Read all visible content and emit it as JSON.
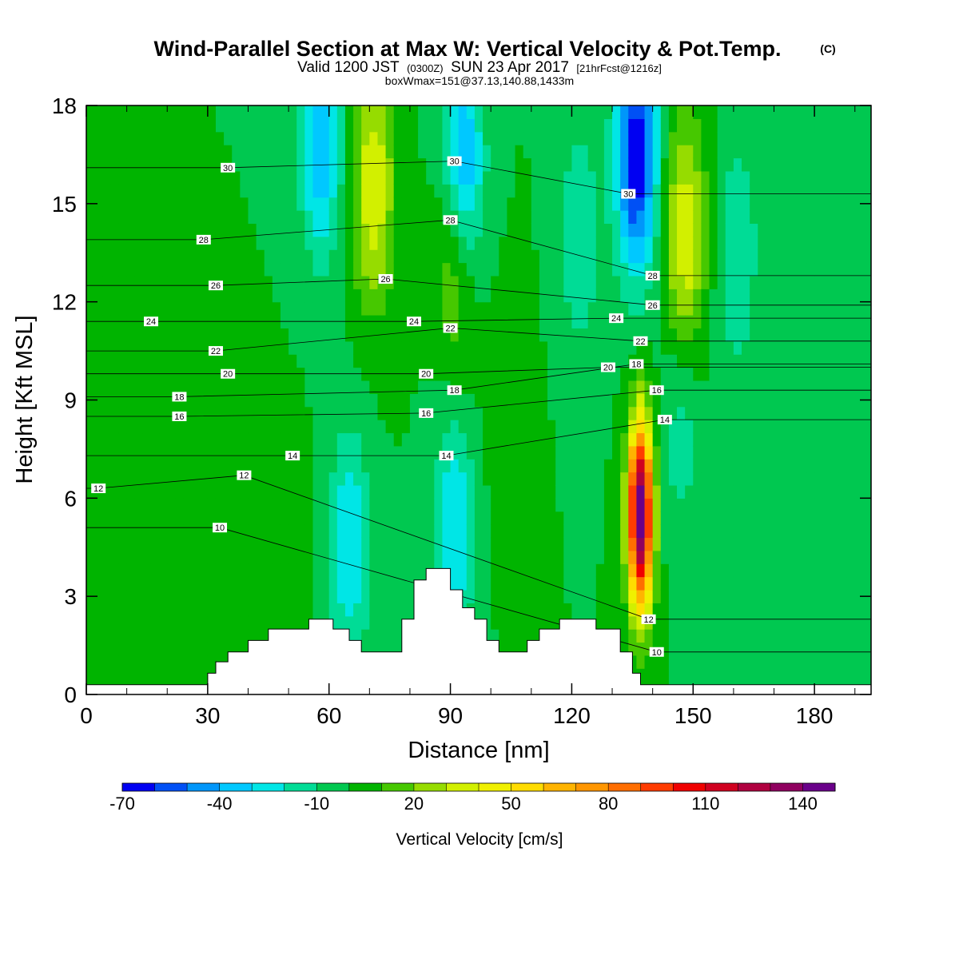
{
  "title": {
    "main": "Wind-Parallel Section at Max W: Vertical Velocity & Pot.Temp.",
    "copyright": "(C)",
    "valid_prefix": "Valid 1200 JST",
    "valid_utc": "(0300Z)",
    "valid_date": "SUN 23 Apr 2017",
    "forecast": "[21hrFcst@1216z]",
    "box": "boxWmax=151@37.13,140.88,1433m"
  },
  "chart_data": {
    "type": "heatmap",
    "xlabel": "Distance [nm]",
    "ylabel": "Height [Kft MSL]",
    "xlim": [
      0,
      194
    ],
    "ylim": [
      0,
      18
    ],
    "xticks": [
      "0",
      "30",
      "60",
      "90",
      "120",
      "150",
      "180"
    ],
    "yticks": [
      "0",
      "3",
      "6",
      "9",
      "12",
      "15",
      "18"
    ],
    "colorbar": {
      "label": "Vertical Velocity [cm/s]",
      "ticks": [
        "-70",
        "-40",
        "-10",
        "20",
        "50",
        "80",
        "110",
        "140"
      ],
      "levels": [
        -70,
        -60,
        -50,
        -40,
        -30,
        -20,
        -10,
        0,
        10,
        20,
        30,
        40,
        50,
        60,
        70,
        80,
        90,
        100,
        110,
        120,
        130,
        140,
        150
      ],
      "colors": [
        "#0000f2",
        "#0050f5",
        "#0096fa",
        "#00c8ff",
        "#00e6e6",
        "#00dc96",
        "#00c850",
        "#00b400",
        "#46c800",
        "#96dc00",
        "#d2f000",
        "#f0f000",
        "#ffdc00",
        "#ffb400",
        "#ff9600",
        "#ff6e00",
        "#ff3c00",
        "#f00000",
        "#d00020",
        "#b00040",
        "#900060",
        "#6a008a"
      ]
    },
    "background_w": 0,
    "w_features": [
      {
        "x": 137,
        "z": 5.5,
        "w": 150
      },
      {
        "x": 136,
        "z": 16.5,
        "w": -70
      },
      {
        "x": 93,
        "z": 16,
        "w": -50
      },
      {
        "x": 58,
        "z": 17,
        "w": -40
      },
      {
        "x": 71,
        "z": 15.5,
        "w": 40
      },
      {
        "x": 91.5,
        "z": 13.5,
        "w": 30
      },
      {
        "x": 148,
        "z": 14,
        "w": 40
      },
      {
        "x": 122,
        "z": 14,
        "w": -20
      },
      {
        "x": 161,
        "z": 13.5,
        "w": -20
      },
      {
        "x": 65,
        "z": 4.5,
        "w": -30
      },
      {
        "x": 91,
        "z": 5,
        "w": -30
      },
      {
        "x": 147,
        "z": 8,
        "w": -15
      },
      {
        "x": 105,
        "z": 8,
        "w": 10
      },
      {
        "x": 48,
        "z": 4,
        "w": 10
      }
    ],
    "terrain": [
      [
        0,
        0.3
      ],
      [
        30,
        0.3
      ],
      [
        30,
        0.65
      ],
      [
        32,
        0.65
      ],
      [
        32,
        1
      ],
      [
        35,
        1
      ],
      [
        35,
        1.3
      ],
      [
        40,
        1.3
      ],
      [
        40,
        1.65
      ],
      [
        45,
        1.65
      ],
      [
        45,
        2
      ],
      [
        55,
        2
      ],
      [
        55,
        2.3
      ],
      [
        61,
        2.3
      ],
      [
        61,
        2
      ],
      [
        65,
        2
      ],
      [
        65,
        1.65
      ],
      [
        68,
        1.65
      ],
      [
        68,
        1.3
      ],
      [
        78,
        1.3
      ],
      [
        78,
        2.3
      ],
      [
        81,
        2.3
      ],
      [
        81,
        3.5
      ],
      [
        84,
        3.5
      ],
      [
        84,
        3.85
      ],
      [
        90,
        3.85
      ],
      [
        90,
        3.2
      ],
      [
        93,
        3.2
      ],
      [
        93,
        2.65
      ],
      [
        96,
        2.65
      ],
      [
        96,
        2.3
      ],
      [
        99,
        2.3
      ],
      [
        99,
        1.65
      ],
      [
        102,
        1.65
      ],
      [
        102,
        1.3
      ],
      [
        109,
        1.3
      ],
      [
        109,
        1.65
      ],
      [
        112,
        1.65
      ],
      [
        112,
        2
      ],
      [
        117,
        2
      ],
      [
        117,
        2.3
      ],
      [
        126,
        2.3
      ],
      [
        126,
        2
      ],
      [
        132,
        2
      ],
      [
        132,
        1.3
      ],
      [
        135,
        1.3
      ],
      [
        135,
        0.65
      ],
      [
        137,
        0.65
      ],
      [
        137,
        0.3
      ],
      [
        194,
        0.3
      ]
    ],
    "theta_labels": [
      {
        "text": "30",
        "x": 35,
        "z": 16.1
      },
      {
        "text": "30",
        "x": 91,
        "z": 16.3
      },
      {
        "text": "30",
        "x": 134,
        "z": 15.3
      },
      {
        "text": "28",
        "x": 29,
        "z": 13.9
      },
      {
        "text": "28",
        "x": 90,
        "z": 14.5
      },
      {
        "text": "28",
        "x": 140,
        "z": 12.8
      },
      {
        "text": "26",
        "x": 32,
        "z": 12.5
      },
      {
        "text": "26",
        "x": 74,
        "z": 12.7
      },
      {
        "text": "26",
        "x": 140,
        "z": 11.9
      },
      {
        "text": "24",
        "x": 16,
        "z": 11.4
      },
      {
        "text": "24",
        "x": 81,
        "z": 11.4
      },
      {
        "text": "24",
        "x": 131,
        "z": 11.5
      },
      {
        "text": "22",
        "x": 32,
        "z": 10.5
      },
      {
        "text": "22",
        "x": 90,
        "z": 11.2
      },
      {
        "text": "22",
        "x": 137,
        "z": 10.8
      },
      {
        "text": "20",
        "x": 35,
        "z": 9.8
      },
      {
        "text": "20",
        "x": 84,
        "z": 9.8
      },
      {
        "text": "20",
        "x": 129,
        "z": 10
      },
      {
        "text": "18",
        "x": 23,
        "z": 9.1
      },
      {
        "text": "18",
        "x": 91,
        "z": 9.3
      },
      {
        "text": "18",
        "x": 136,
        "z": 10.1
      },
      {
        "text": "16",
        "x": 23,
        "z": 8.5
      },
      {
        "text": "16",
        "x": 84,
        "z": 8.6
      },
      {
        "text": "16",
        "x": 141,
        "z": 9.3
      },
      {
        "text": "14",
        "x": 51,
        "z": 7.3
      },
      {
        "text": "14",
        "x": 89,
        "z": 7.3
      },
      {
        "text": "14",
        "x": 143,
        "z": 8.4
      },
      {
        "text": "12",
        "x": 3,
        "z": 6.3
      },
      {
        "text": "12",
        "x": 39,
        "z": 6.7
      },
      {
        "text": "12",
        "x": 139,
        "z": 2.3
      },
      {
        "text": "10",
        "x": 33,
        "z": 5.1
      },
      {
        "text": "10",
        "x": 141,
        "z": 1.3
      }
    ]
  }
}
